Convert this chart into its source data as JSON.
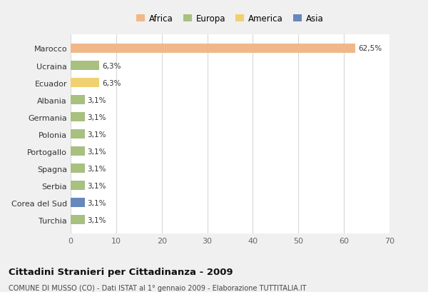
{
  "categories": [
    "Turchia",
    "Corea del Sud",
    "Serbia",
    "Spagna",
    "Portogallo",
    "Polonia",
    "Germania",
    "Albania",
    "Ecuador",
    "Ucraina",
    "Marocco"
  ],
  "values": [
    3.1,
    3.1,
    3.1,
    3.1,
    3.1,
    3.1,
    3.1,
    3.1,
    6.3,
    6.3,
    62.5
  ],
  "colors": [
    "#a8c080",
    "#6688bb",
    "#a8c080",
    "#a8c080",
    "#a8c080",
    "#a8c080",
    "#a8c080",
    "#a8c080",
    "#f0d070",
    "#a8c080",
    "#f0b888"
  ],
  "labels": [
    "3,1%",
    "3,1%",
    "3,1%",
    "3,1%",
    "3,1%",
    "3,1%",
    "3,1%",
    "3,1%",
    "6,3%",
    "6,3%",
    "62,5%"
  ],
  "legend_labels": [
    "Africa",
    "Europa",
    "America",
    "Asia"
  ],
  "legend_colors": [
    "#f0b888",
    "#a8c080",
    "#f0d070",
    "#6688bb"
  ],
  "title": "Cittadini Stranieri per Cittadinanza - 2009",
  "subtitle": "COMUNE DI MUSSO (CO) - Dati ISTAT al 1° gennaio 2009 - Elaborazione TUTTITALIA.IT",
  "xlim": [
    0,
    70
  ],
  "xticks": [
    0,
    10,
    20,
    30,
    40,
    50,
    60,
    70
  ],
  "background_color": "#f0f0f0",
  "bar_background": "#ffffff",
  "grid_color": "#d8d8d8"
}
